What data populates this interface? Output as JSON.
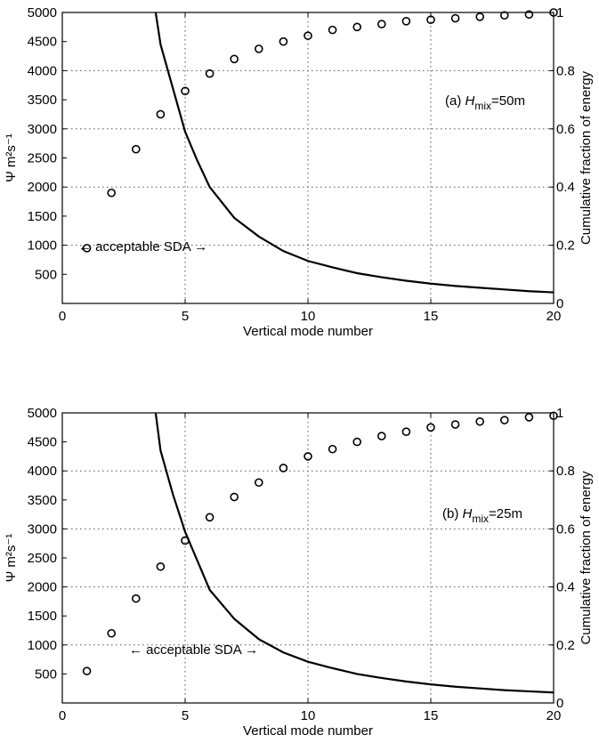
{
  "chart_data": [
    {
      "type": "line",
      "panel_label": "(a)",
      "annotation": "← acceptable SDA →",
      "h_label": "H",
      "h_sub": "mix",
      "h_value": "=50m",
      "xlabel": "Vertical mode number",
      "ylabel_left": "Ψ m²s⁻¹",
      "ylabel_right": "Cumulative fraction of energy",
      "xlim": [
        0,
        20
      ],
      "ylim_left": [
        0,
        5000
      ],
      "ylim_right": [
        0,
        1
      ],
      "x_ticks": [
        "0",
        "5",
        "10",
        "15",
        "20"
      ],
      "y_left_ticks": [
        "500",
        "1000",
        "1500",
        "2000",
        "2500",
        "3000",
        "3500",
        "4000",
        "4500",
        "5000"
      ],
      "y_right_ticks": [
        "0",
        "0.2",
        "0.4",
        "0.6",
        "0.8",
        "1"
      ],
      "grid": true,
      "series": [
        {
          "style": "line",
          "axis": "left",
          "x": [
            3.8,
            4,
            4.5,
            5,
            5.5,
            6,
            7,
            8,
            9,
            10,
            11,
            12,
            13,
            14,
            15,
            16,
            17,
            18,
            19,
            20
          ],
          "y": [
            5000,
            4450,
            3700,
            2950,
            2450,
            2000,
            1470,
            1150,
            900,
            730,
            620,
            520,
            450,
            390,
            340,
            300,
            270,
            240,
            210,
            190
          ]
        },
        {
          "style": "markers",
          "axis": "right",
          "x": [
            1,
            2,
            3,
            4,
            5,
            6,
            7,
            8,
            9,
            10,
            11,
            12,
            13,
            14,
            15,
            16,
            17,
            18,
            19,
            20
          ],
          "y": [
            0.19,
            0.38,
            0.53,
            0.65,
            0.73,
            0.79,
            0.84,
            0.875,
            0.9,
            0.92,
            0.94,
            0.95,
            0.96,
            0.97,
            0.975,
            0.98,
            0.985,
            0.99,
            0.993,
            1.0
          ]
        }
      ]
    },
    {
      "type": "line",
      "panel_label": "(b)",
      "annotation": "← acceptable SDA →",
      "h_label": "H",
      "h_sub": "mix",
      "h_value": "=25m",
      "xlabel": "Vertical mode number",
      "ylabel_left": "Ψ m²s⁻¹",
      "ylabel_right": "Cumulative fraction of energy",
      "xlim": [
        0,
        20
      ],
      "ylim_left": [
        0,
        5000
      ],
      "ylim_right": [
        0,
        1
      ],
      "x_ticks": [
        "0",
        "5",
        "10",
        "15",
        "20"
      ],
      "y_left_ticks": [
        "500",
        "1000",
        "1500",
        "2000",
        "2500",
        "3000",
        "3500",
        "4000",
        "4500",
        "5000"
      ],
      "y_right_ticks": [
        "0",
        "0.2",
        "0.4",
        "0.6",
        "0.8",
        "1"
      ],
      "grid": true,
      "series": [
        {
          "style": "line",
          "axis": "left",
          "x": [
            3.8,
            4,
            4.5,
            5,
            5.5,
            6,
            7,
            8,
            9,
            10,
            11,
            12,
            13,
            14,
            15,
            16,
            17,
            18,
            19,
            20
          ],
          "y": [
            5000,
            4350,
            3600,
            2950,
            2450,
            1950,
            1450,
            1100,
            870,
            710,
            600,
            500,
            430,
            370,
            320,
            280,
            250,
            220,
            200,
            180
          ]
        },
        {
          "style": "markers",
          "axis": "right",
          "x": [
            1,
            2,
            3,
            4,
            5,
            6,
            7,
            8,
            9,
            10,
            11,
            12,
            13,
            14,
            15,
            16,
            17,
            18,
            19,
            20
          ],
          "y": [
            0.11,
            0.24,
            0.36,
            0.47,
            0.56,
            0.64,
            0.71,
            0.76,
            0.81,
            0.85,
            0.875,
            0.9,
            0.92,
            0.935,
            0.95,
            0.96,
            0.97,
            0.975,
            0.985,
            0.99
          ]
        }
      ]
    }
  ]
}
